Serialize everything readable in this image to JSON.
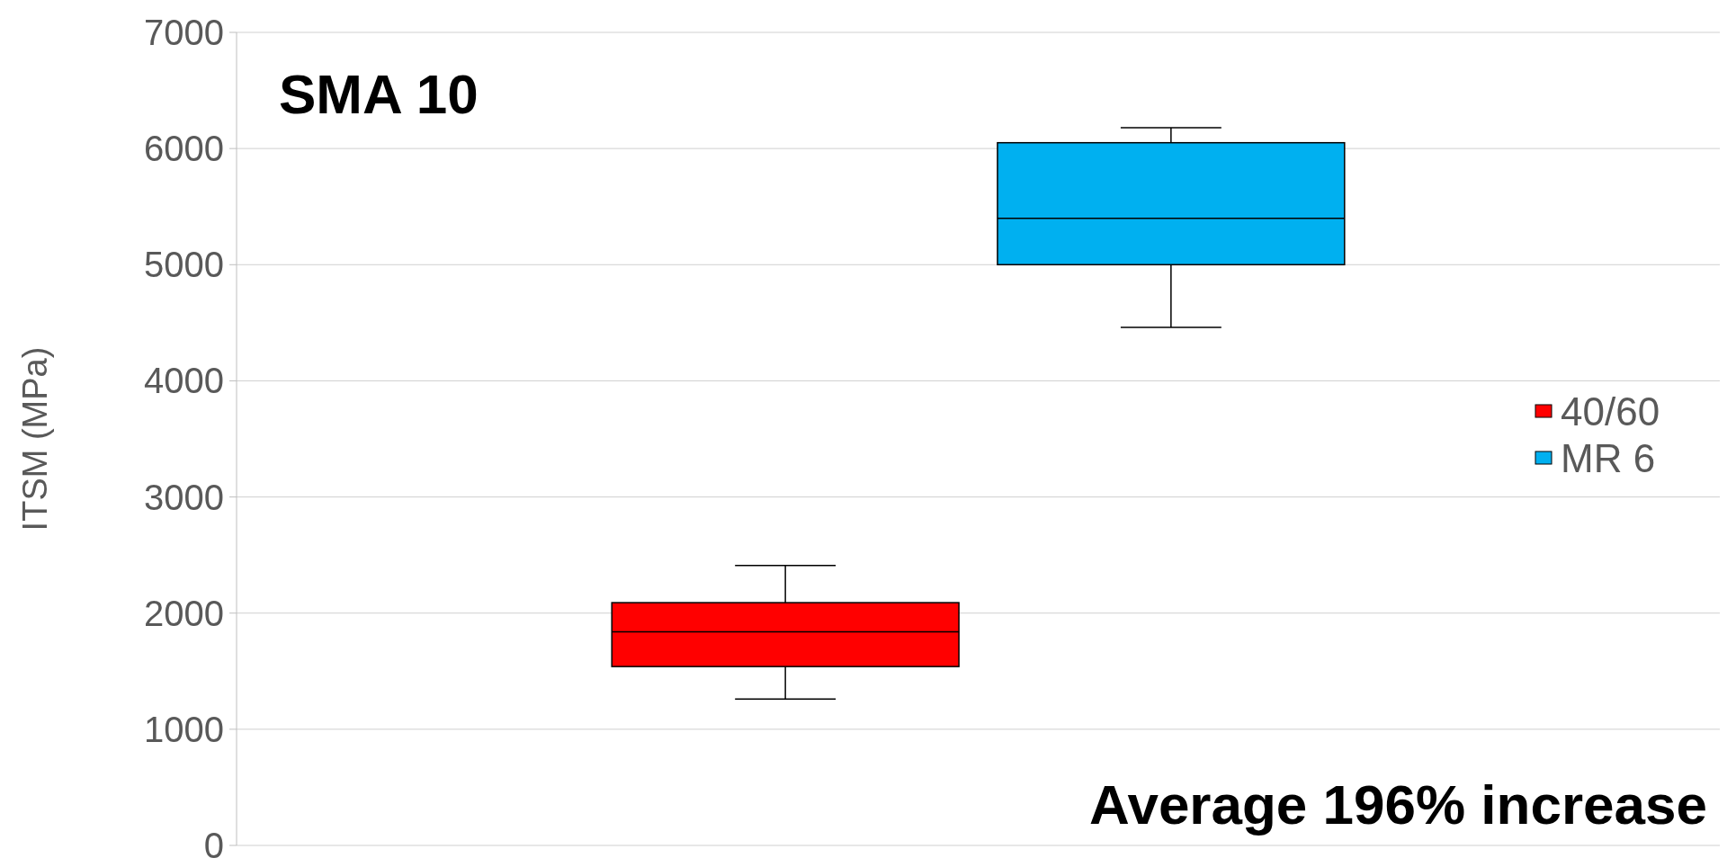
{
  "chart_data": {
    "type": "box",
    "title": "SMA 10",
    "ylabel": "ITSM (MPa)",
    "categories": [
      null
    ],
    "series": [
      {
        "name": "40/60",
        "color": "#ff0000",
        "boxes": [
          {
            "low": 1260,
            "q1": 1540,
            "median": 1840,
            "q3": 2090,
            "high": 2410
          }
        ]
      },
      {
        "name": "MR 6",
        "color": "#00b0f0",
        "boxes": [
          {
            "low": 4460,
            "q1": 5000,
            "median": 5400,
            "q3": 6050,
            "high": 6180
          }
        ]
      }
    ],
    "ylim": [
      0,
      7000
    ],
    "yticks": [
      0,
      1000,
      2000,
      3000,
      4000,
      5000,
      6000,
      7000
    ],
    "grid": "y",
    "legend": "right",
    "annotations": [
      "Average 196% increase"
    ]
  }
}
